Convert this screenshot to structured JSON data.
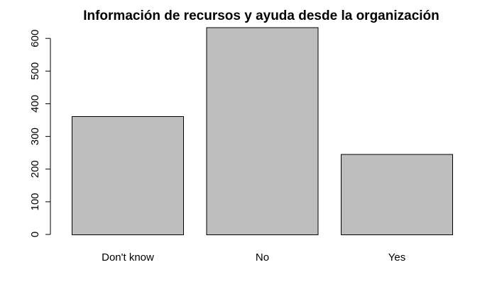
{
  "chart_data": {
    "type": "bar",
    "title": "Información de recursos y ayuda desde la organización",
    "xlabel": "",
    "ylabel": "",
    "categories": [
      "Don't know",
      "No",
      "Yes"
    ],
    "values": [
      362,
      634,
      246
    ],
    "ylim": [
      0,
      600
    ],
    "yticks": [
      0,
      100,
      200,
      300,
      400,
      500,
      600
    ],
    "bar_color": "#bebebe",
    "border_color": "#000000",
    "grid": false
  }
}
